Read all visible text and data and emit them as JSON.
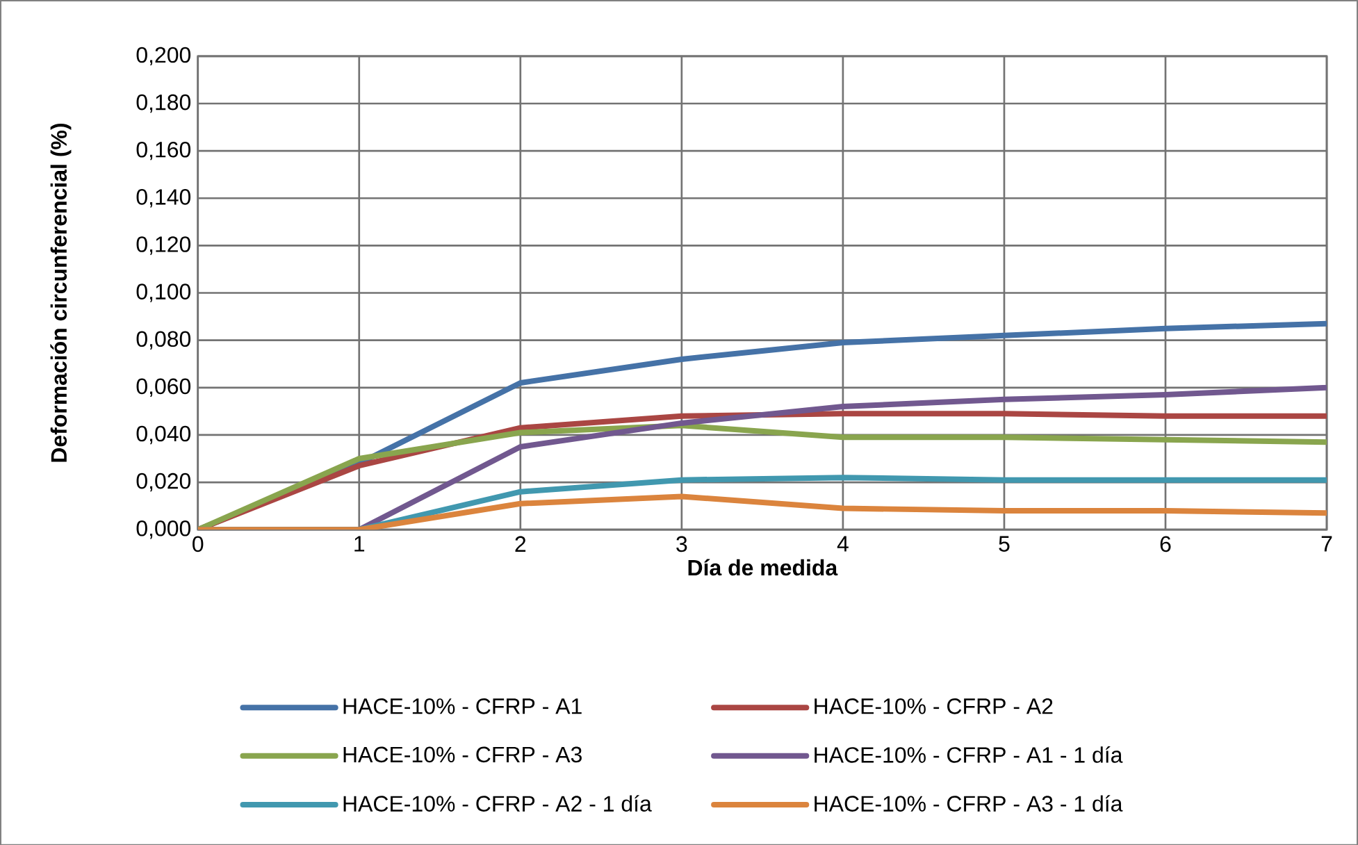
{
  "chart_data": {
    "type": "line",
    "xlabel": "Día de medida",
    "ylabel": "Deformación circunferencial (%)",
    "x": [
      0,
      1,
      2,
      3,
      4,
      5,
      6,
      7
    ],
    "series": [
      {
        "name": "HACE-10% - CFRP - A1",
        "color": "#4572a7",
        "values": [
          0,
          0.028,
          0.062,
          0.072,
          0.079,
          0.082,
          0.085,
          0.087
        ]
      },
      {
        "name": "HACE-10% - CFRP - A2",
        "color": "#aa4643",
        "values": [
          0,
          0.027,
          0.043,
          0.048,
          0.049,
          0.049,
          0.048,
          0.048
        ]
      },
      {
        "name": "HACE-10% - CFRP - A3",
        "color": "#89a54e",
        "values": [
          0,
          0.03,
          0.041,
          0.044,
          0.039,
          0.039,
          0.038,
          0.037
        ]
      },
      {
        "name": "HACE-10% - CFRP - A1 - 1 día",
        "color": "#71588f",
        "values": [
          0,
          0,
          0.035,
          0.045,
          0.052,
          0.055,
          0.057,
          0.06
        ]
      },
      {
        "name": "HACE-10% - CFRP - A2 - 1 día",
        "color": "#4198af",
        "values": [
          0,
          0,
          0.016,
          0.021,
          0.022,
          0.021,
          0.021,
          0.021
        ]
      },
      {
        "name": "HACE-10% - CFRP - A3  - 1 día",
        "color": "#db843d",
        "values": [
          0,
          0,
          0.011,
          0.014,
          0.009,
          0.008,
          0.008,
          0.007
        ]
      }
    ],
    "xlim": [
      0,
      7
    ],
    "xticks": [
      0,
      1,
      2,
      3,
      4,
      5,
      6,
      7
    ],
    "ylim": [
      0,
      0.2
    ],
    "yticks": [
      {
        "value": 0,
        "label": "0,000"
      },
      {
        "value": 0.02,
        "label": "0,020"
      },
      {
        "value": 0.04,
        "label": "0,040"
      },
      {
        "value": 0.06,
        "label": "0,060"
      },
      {
        "value": 0.08,
        "label": "0,080"
      },
      {
        "value": 0.1,
        "label": "0,100"
      },
      {
        "value": 0.12,
        "label": "0,120"
      },
      {
        "value": 0.14,
        "label": "0,140"
      },
      {
        "value": 0.16,
        "label": "0,160"
      },
      {
        "value": 0.18,
        "label": "0,180"
      },
      {
        "value": 0.2,
        "label": "0,200"
      }
    ],
    "grid": true,
    "legend": "bottom",
    "marker": "none",
    "line_style": "solid"
  }
}
